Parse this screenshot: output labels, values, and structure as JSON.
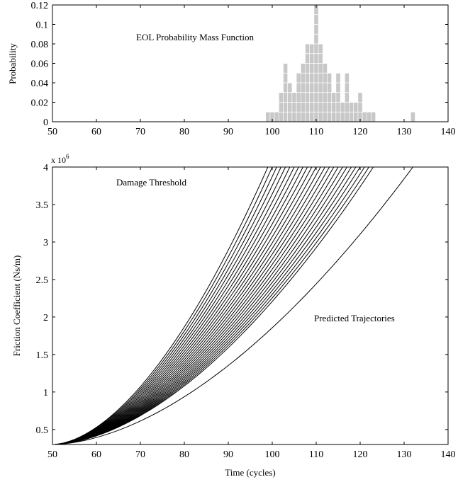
{
  "chart_data": [
    {
      "type": "bar",
      "title": "EOL Probability Mass Function",
      "xlabel": "",
      "ylabel": "Probability",
      "xlim": [
        50,
        140
      ],
      "ylim": [
        0,
        0.12
      ],
      "xticks": [
        "50",
        "60",
        "70",
        "80",
        "90",
        "100",
        "110",
        "120",
        "130",
        "140"
      ],
      "yticks": [
        "0",
        "0.02",
        "0.04",
        "0.06",
        "0.08",
        "0.1",
        "0.12"
      ],
      "bar_color": "#c8c8c8",
      "bar_edge_color": "#ffffff",
      "x": [
        99,
        100,
        101,
        102,
        103,
        104,
        105,
        106,
        107,
        108,
        109,
        110,
        111,
        112,
        113,
        114,
        115,
        116,
        117,
        118,
        119,
        120,
        121,
        122,
        123,
        132
      ],
      "values": [
        0.01,
        0.01,
        0.01,
        0.03,
        0.06,
        0.04,
        0.03,
        0.05,
        0.06,
        0.08,
        0.08,
        0.12,
        0.08,
        0.06,
        0.05,
        0.03,
        0.05,
        0.02,
        0.05,
        0.02,
        0.02,
        0.03,
        0.01,
        0.01,
        0.01,
        0.01
      ]
    },
    {
      "type": "line",
      "exponent_label": "x 10",
      "exponent_value": "6",
      "xlabel": "Time (cycles)",
      "ylabel": "Friction Coefficient (Ns/m)",
      "xlim": [
        50,
        140
      ],
      "ylim": [
        0.3,
        4
      ],
      "xticks": [
        "50",
        "60",
        "70",
        "80",
        "90",
        "100",
        "110",
        "120",
        "130",
        "140"
      ],
      "yticks": [
        "0.5",
        "1",
        "1.5",
        "2",
        "2.5",
        "3",
        "3.5",
        "4"
      ],
      "threshold_value": 4,
      "threshold_label": "Damage Threshold",
      "series_label": "Predicted Trajectories",
      "line_color": "#000000",
      "start": {
        "x": 50,
        "y": 0.3
      },
      "end_points": [
        {
          "x": 99,
          "y": 4
        },
        {
          "x": 100,
          "y": 4
        },
        {
          "x": 101,
          "y": 4
        },
        {
          "x": 102,
          "y": 4
        },
        {
          "x": 103,
          "y": 4
        },
        {
          "x": 104,
          "y": 4
        },
        {
          "x": 105,
          "y": 4
        },
        {
          "x": 106,
          "y": 4
        },
        {
          "x": 107,
          "y": 4
        },
        {
          "x": 108,
          "y": 4
        },
        {
          "x": 109,
          "y": 4
        },
        {
          "x": 110,
          "y": 4
        },
        {
          "x": 111,
          "y": 4
        },
        {
          "x": 112,
          "y": 4
        },
        {
          "x": 113,
          "y": 4
        },
        {
          "x": 114,
          "y": 4
        },
        {
          "x": 115,
          "y": 4
        },
        {
          "x": 116,
          "y": 4
        },
        {
          "x": 117,
          "y": 4
        },
        {
          "x": 118,
          "y": 4
        },
        {
          "x": 119,
          "y": 4
        },
        {
          "x": 120,
          "y": 4
        },
        {
          "x": 121,
          "y": 4
        },
        {
          "x": 122,
          "y": 4
        },
        {
          "x": 123,
          "y": 4
        },
        {
          "x": 132,
          "y": 4
        }
      ]
    }
  ]
}
